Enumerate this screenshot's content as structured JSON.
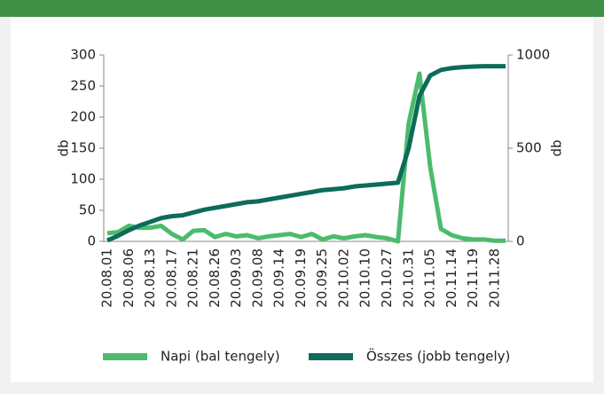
{
  "chart_data": {
    "type": "line",
    "x_label": "db",
    "y2_label": "db",
    "categories": [
      "20.08.01",
      null,
      "20.08.06",
      null,
      "20.08.13",
      null,
      "20.08.17",
      null,
      "20.08.21",
      null,
      "20.08.26",
      null,
      "20.09.03",
      null,
      "20.09.08",
      null,
      "20.09.14",
      null,
      "20.09.19",
      null,
      "20.09.25",
      null,
      "20.10.02",
      null,
      "20.10.10",
      null,
      "20.10.27",
      null,
      "20.10.31",
      null,
      "20.11.05",
      null,
      "20.11.14",
      null,
      "20.11.19",
      null,
      "20.11.28",
      null
    ],
    "series": [
      {
        "name": "Napi (bal tengely)",
        "color": "#4cbb6c",
        "values": [
          13,
          15,
          25,
          22,
          22,
          25,
          12,
          3,
          17,
          18,
          7,
          12,
          8,
          10,
          5,
          8,
          10,
          12,
          7,
          12,
          3,
          8,
          5,
          8,
          10,
          7,
          5,
          0,
          190,
          270,
          120,
          20,
          10,
          5,
          3,
          3,
          1,
          1
        ]
      },
      {
        "name": "Összes (jobb tengely)",
        "color": "#0d6b5a",
        "axis": "y2",
        "values": [
          5,
          30,
          60,
          85,
          105,
          125,
          135,
          140,
          155,
          170,
          180,
          190,
          200,
          210,
          215,
          225,
          235,
          245,
          255,
          265,
          275,
          280,
          285,
          295,
          300,
          305,
          310,
          315,
          500,
          780,
          890,
          920,
          930,
          935,
          938,
          940,
          940,
          940
        ]
      }
    ],
    "ylim": [
      0,
      300
    ],
    "yticks": [
      0,
      50,
      100,
      150,
      200,
      250,
      300
    ],
    "y2lim": [
      0,
      1000
    ],
    "y2ticks": [
      0,
      500,
      1000
    ]
  }
}
